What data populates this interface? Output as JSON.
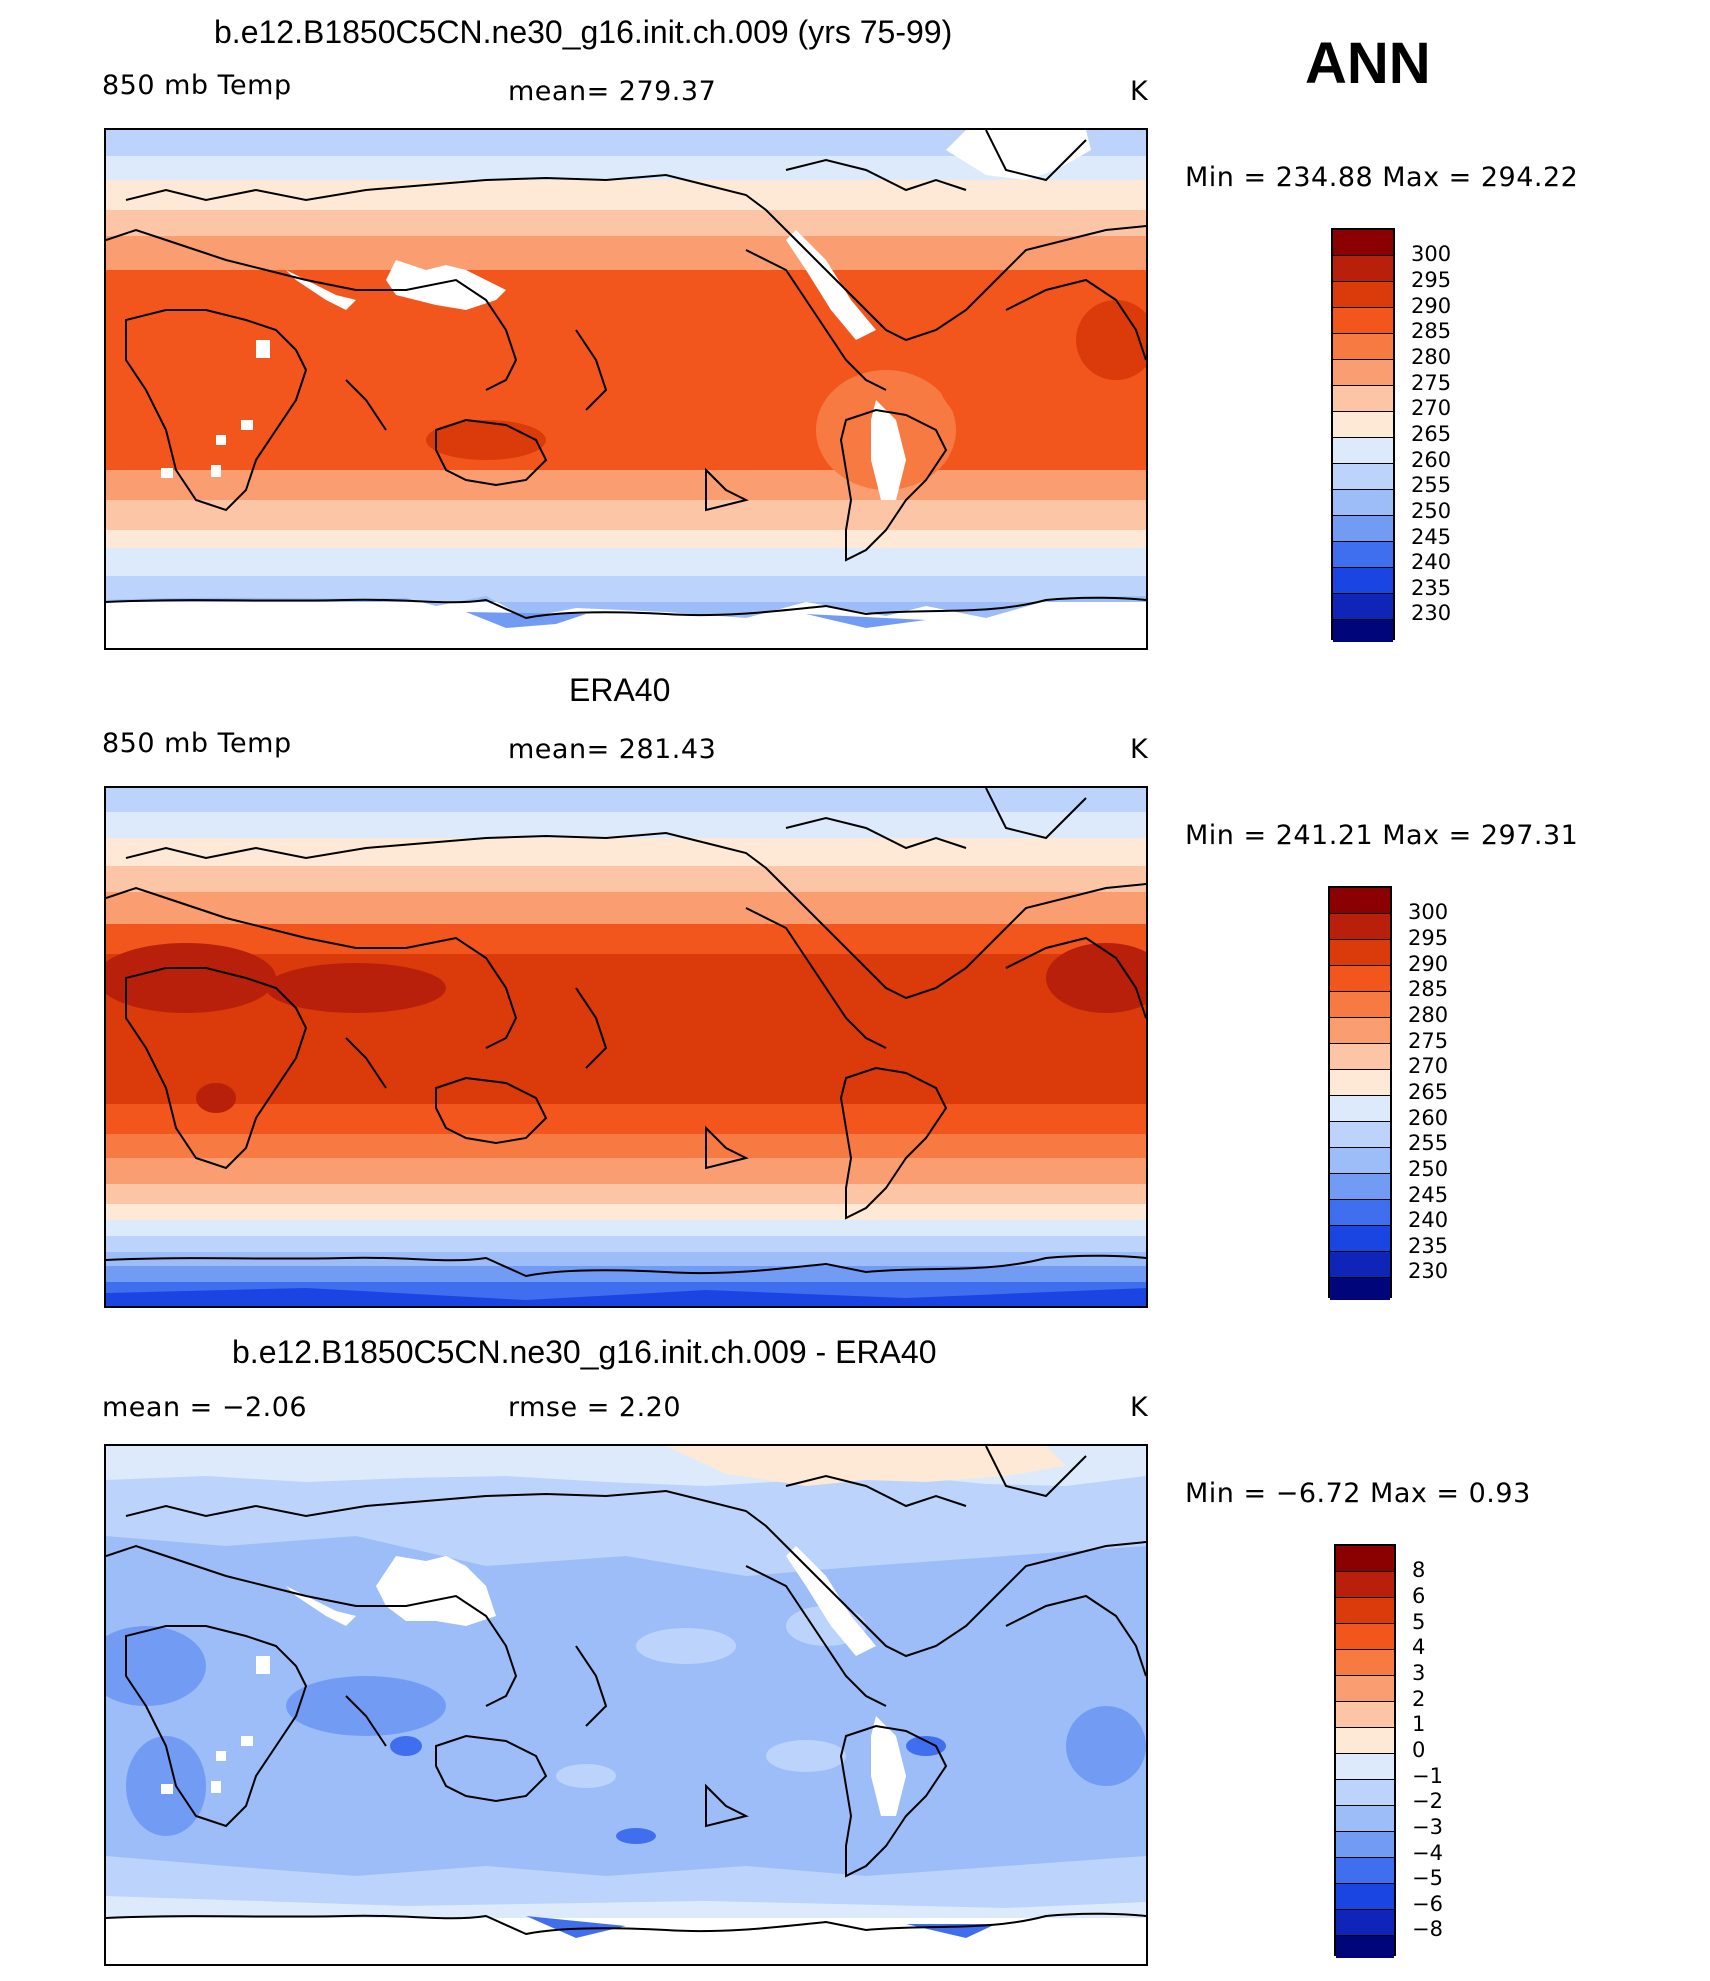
{
  "season": "ANN",
  "panels": [
    {
      "id": "model",
      "title": "b.e12.B1850C5CN.ne30_g16.init.ch.009 (yrs 75-99)",
      "left_label": "850 mb Temp",
      "center_label": "mean=  279.37",
      "units": "K",
      "minmax": "Min  =  234.88  Max  =  294.22",
      "legend": [
        "300",
        "295",
        "290",
        "285",
        "280",
        "275",
        "270",
        "265",
        "260",
        "255",
        "250",
        "245",
        "240",
        "235",
        "230"
      ]
    },
    {
      "id": "obs",
      "title": "ERA40",
      "left_label": "850 mb Temp",
      "center_label": "mean=  281.43",
      "units": "K",
      "minmax": "Min  =  241.21  Max  =  297.31",
      "legend": [
        "300",
        "295",
        "290",
        "285",
        "280",
        "275",
        "270",
        "265",
        "260",
        "255",
        "250",
        "245",
        "240",
        "235",
        "230"
      ]
    },
    {
      "id": "diff",
      "title": "b.e12.B1850C5CN.ne30_g16.init.ch.009 - ERA40",
      "left_label": "mean  =    −2.06",
      "center_label": "rmse  =      2.20",
      "units": "K",
      "minmax": "Min  =    −6.72  Max  =      0.93",
      "legend": [
        "8",
        "6",
        "5",
        "4",
        "3",
        "2",
        "1",
        "0",
        "−1",
        "−2",
        "−3",
        "−4",
        "−5",
        "−6",
        "−8"
      ]
    }
  ],
  "colors": {
    "scale": [
      "#8b0000",
      "#b8200c",
      "#db3a0a",
      "#f2561c",
      "#f77a42",
      "#fa9e72",
      "#fcc6a6",
      "#fde9d6",
      "#dceafc",
      "#bcd4fb",
      "#9cbdf8",
      "#729cf4",
      "#3f6fee",
      "#1a45e3",
      "#0f25b8",
      "#061484",
      "#00067a"
    ],
    "missing": "#ffffff",
    "coast": "#000000"
  }
}
